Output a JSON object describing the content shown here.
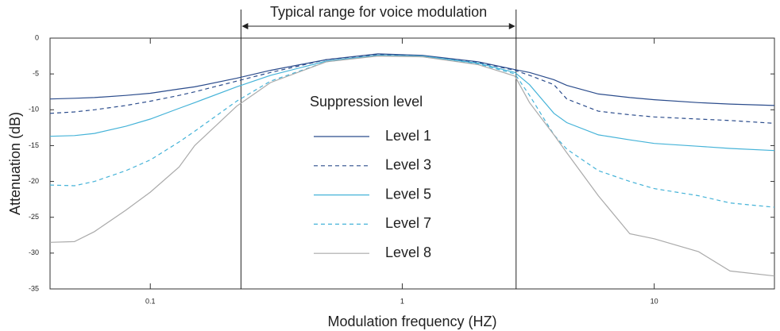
{
  "chart_data": {
    "type": "line",
    "xlabel": "Modulation frequency (HZ)",
    "ylabel": "Attenuation (dB)",
    "annotation": {
      "text": "Typical range for voice modulation",
      "x": [
        0.229,
        2.83
      ]
    },
    "legend_title": "Suppression level",
    "legend": "center",
    "xscale": "log",
    "xlim": [
      0.04,
      30
    ],
    "ylim": [
      -35,
      0
    ],
    "xticks": [
      0.1,
      1,
      10
    ],
    "yticks": [
      0,
      -5,
      -10,
      -15,
      -20,
      -25,
      -30,
      -35
    ],
    "x": [
      0.04,
      0.05,
      0.06,
      0.08,
      0.1,
      0.13,
      0.15,
      0.22,
      0.3,
      0.5,
      0.8,
      1.2,
      2,
      2.8,
      3.2,
      4,
      4.5,
      6,
      8,
      10,
      15,
      20,
      30
    ],
    "series": [
      {
        "name": "Level 1",
        "color": "#2b4c8c",
        "dash": false,
        "values": [
          -8.5,
          -8.4,
          -8.3,
          -8.0,
          -7.7,
          -7.1,
          -6.8,
          -5.6,
          -4.5,
          -3,
          -2.2,
          -2.4,
          -3.3,
          -4.4,
          -4.8,
          -5.8,
          -6.6,
          -7.8,
          -8.3,
          -8.6,
          -9.0,
          -9.2,
          -9.4
        ]
      },
      {
        "name": "Level 3",
        "color": "#2b4c8c",
        "dash": true,
        "values": [
          -10.5,
          -10.3,
          -10,
          -9.4,
          -8.8,
          -8,
          -7.5,
          -6,
          -4.8,
          -3,
          -2.3,
          -2.5,
          -3.4,
          -4.5,
          -5.2,
          -6.5,
          -8.5,
          -10.2,
          -10.7,
          -11,
          -11.3,
          -11.5,
          -11.9
        ]
      },
      {
        "name": "Level 5",
        "color": "#45b3d8",
        "dash": false,
        "values": [
          -13.7,
          -13.6,
          -13.3,
          -12.3,
          -11.3,
          -9.8,
          -9,
          -6.8,
          -5.2,
          -3.2,
          -2.4,
          -2.5,
          -3.5,
          -4.8,
          -6.5,
          -10.5,
          -11.8,
          -13.5,
          -14.2,
          -14.7,
          -15.1,
          -15.4,
          -15.7
        ]
      },
      {
        "name": "Level 7",
        "color": "#45b3d8",
        "dash": true,
        "values": [
          -20.5,
          -20.6,
          -20,
          -18.5,
          -17,
          -14.5,
          -13,
          -8.8,
          -6,
          -3.3,
          -2.4,
          -2.6,
          -3.6,
          -5,
          -8,
          -13.5,
          -15.5,
          -18.5,
          -20,
          -21,
          -22,
          -23,
          -23.6
        ]
      },
      {
        "name": "Level 8",
        "color": "#aaaaaa",
        "dash": false,
        "values": [
          -28.5,
          -28.4,
          -27,
          -24,
          -21.5,
          -18,
          -15,
          -9.5,
          -6.2,
          -3.3,
          -2.5,
          -2.6,
          -3.7,
          -5.3,
          -9,
          -13.5,
          -16,
          -22,
          -27.3,
          -28,
          -29.8,
          -32.5,
          -33.2
        ]
      }
    ]
  }
}
